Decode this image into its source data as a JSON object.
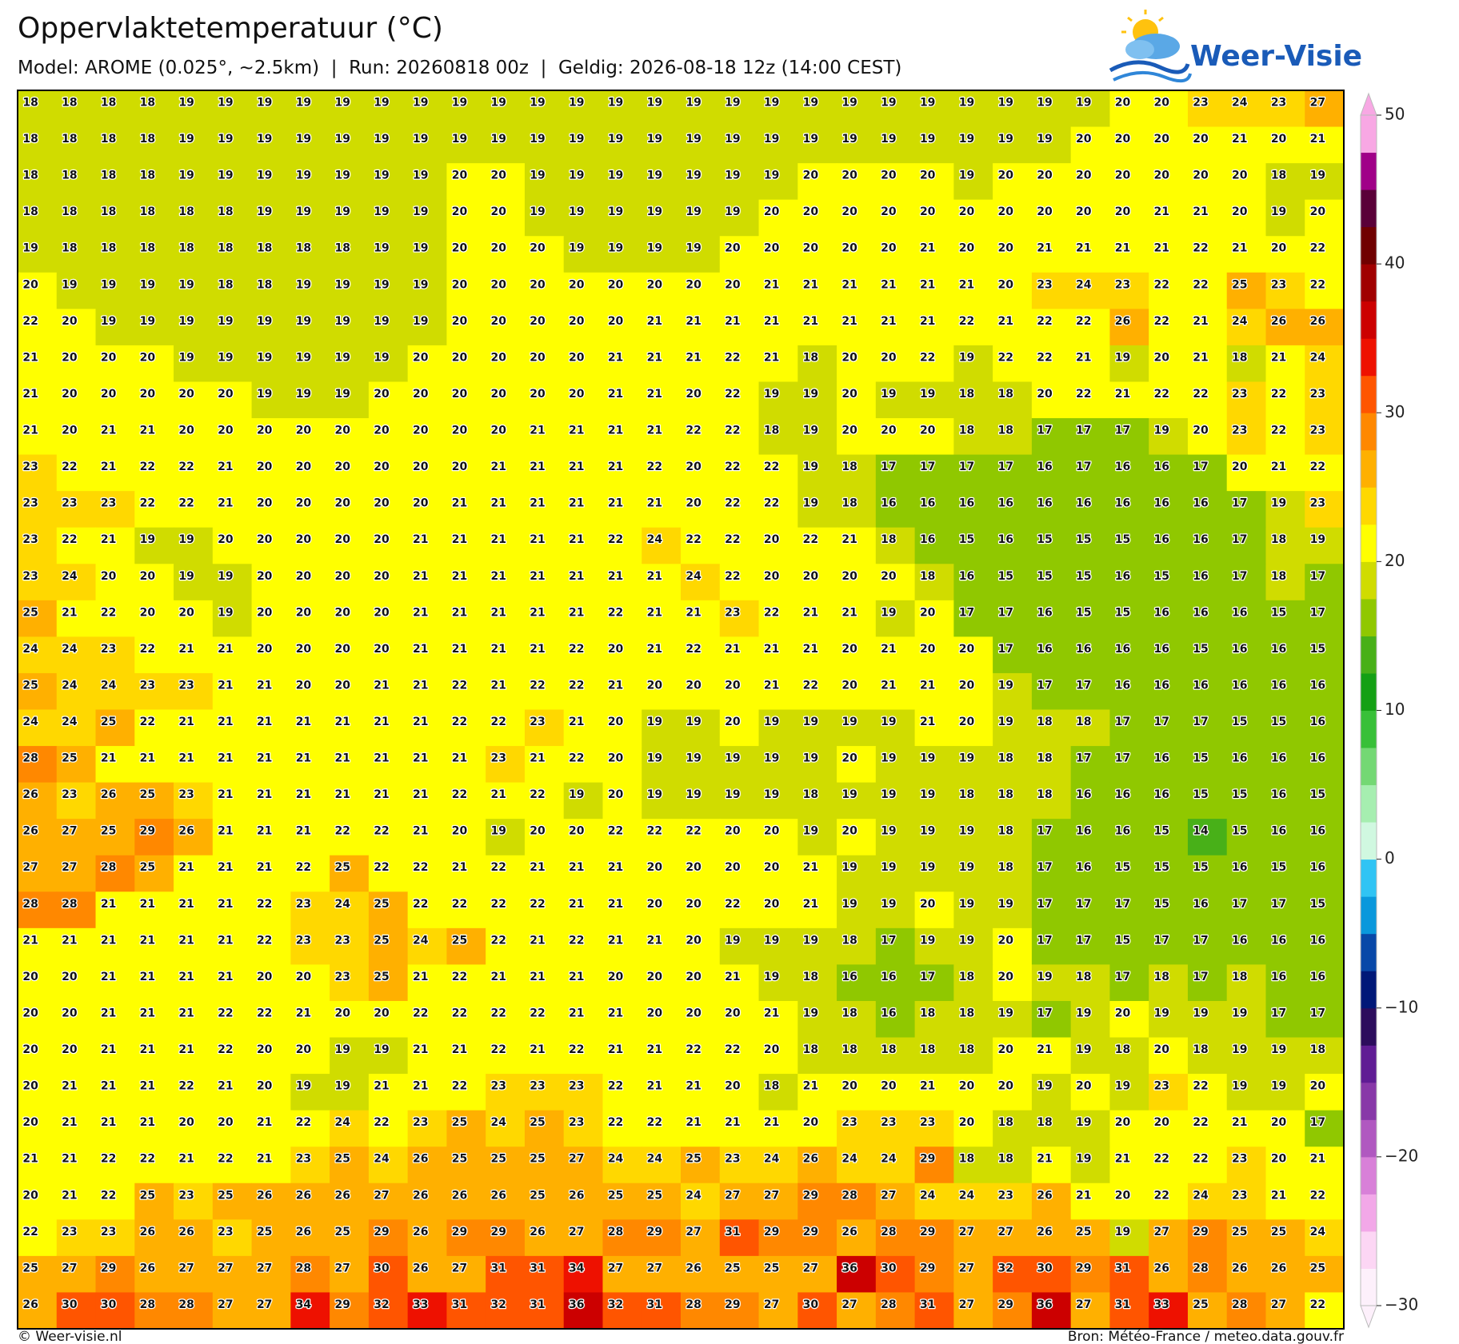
{
  "header": {
    "title": "Oppervlaktetemperatuur (°C)",
    "subtitle": "Model: AROME (0.025°, ~2.5km)  |  Run: 20260818 00z  |  Geldig: 2026-08-18 12z (14:00 CEST)"
  },
  "logo": {
    "text": "Weer-Visie"
  },
  "map": {
    "rows": [
      [
        18,
        18,
        18,
        18,
        19,
        19,
        19,
        19,
        19,
        19,
        19,
        19,
        19,
        19,
        19,
        19,
        19,
        19,
        19,
        19,
        19,
        19,
        19,
        19,
        19,
        19,
        19,
        19,
        20,
        20,
        23,
        24,
        23,
        27
      ],
      [
        18,
        18,
        18,
        18,
        19,
        19,
        19,
        19,
        19,
        19,
        19,
        19,
        19,
        19,
        19,
        19,
        19,
        19,
        19,
        19,
        19,
        19,
        19,
        19,
        19,
        19,
        19,
        20,
        20,
        20,
        20,
        21,
        20,
        21
      ],
      [
        18,
        18,
        18,
        18,
        19,
        19,
        19,
        19,
        19,
        19,
        19,
        20,
        20,
        19,
        19,
        19,
        19,
        19,
        19,
        19,
        20,
        20,
        20,
        20,
        19,
        20,
        20,
        20,
        20,
        20,
        20,
        20,
        18,
        19
      ],
      [
        18,
        18,
        18,
        18,
        18,
        18,
        19,
        19,
        19,
        19,
        19,
        20,
        20,
        19,
        19,
        19,
        19,
        19,
        19,
        20,
        20,
        20,
        20,
        20,
        20,
        20,
        20,
        20,
        20,
        21,
        21,
        20,
        19,
        20
      ],
      [
        19,
        18,
        18,
        18,
        18,
        18,
        18,
        18,
        18,
        19,
        19,
        20,
        20,
        20,
        19,
        19,
        19,
        19,
        20,
        20,
        20,
        20,
        20,
        21,
        20,
        20,
        21,
        21,
        21,
        21,
        22,
        21,
        20,
        22
      ],
      [
        20,
        19,
        19,
        19,
        19,
        18,
        18,
        19,
        19,
        19,
        19,
        20,
        20,
        20,
        20,
        20,
        20,
        20,
        20,
        21,
        21,
        21,
        21,
        21,
        21,
        20,
        23,
        24,
        23,
        22,
        22,
        25,
        23,
        22
      ],
      [
        22,
        20,
        19,
        19,
        19,
        19,
        19,
        19,
        19,
        19,
        19,
        20,
        20,
        20,
        20,
        20,
        21,
        21,
        21,
        21,
        21,
        21,
        21,
        21,
        22,
        21,
        22,
        22,
        26,
        22,
        21,
        24,
        26,
        26
      ],
      [
        21,
        20,
        20,
        20,
        19,
        19,
        19,
        19,
        19,
        19,
        20,
        20,
        20,
        20,
        20,
        21,
        21,
        21,
        22,
        21,
        18,
        20,
        20,
        22,
        19,
        22,
        22,
        21,
        19,
        20,
        21,
        18,
        21,
        24
      ],
      [
        21,
        20,
        20,
        20,
        20,
        20,
        19,
        19,
        19,
        20,
        20,
        20,
        20,
        20,
        20,
        21,
        21,
        20,
        22,
        19,
        19,
        20,
        19,
        19,
        18,
        18,
        20,
        22,
        21,
        22,
        22,
        23,
        22,
        23
      ],
      [
        21,
        20,
        21,
        21,
        20,
        20,
        20,
        20,
        20,
        20,
        20,
        20,
        20,
        21,
        21,
        21,
        21,
        22,
        22,
        18,
        19,
        20,
        20,
        20,
        18,
        18,
        17,
        17,
        17,
        19,
        20,
        23,
        22,
        23
      ],
      [
        23,
        22,
        21,
        22,
        22,
        21,
        20,
        20,
        20,
        20,
        20,
        20,
        21,
        21,
        21,
        21,
        22,
        20,
        22,
        22,
        19,
        18,
        17,
        17,
        17,
        17,
        16,
        17,
        16,
        16,
        17,
        20,
        21,
        22
      ],
      [
        23,
        23,
        23,
        22,
        22,
        21,
        20,
        20,
        20,
        20,
        20,
        21,
        21,
        21,
        21,
        21,
        21,
        20,
        22,
        22,
        19,
        18,
        16,
        16,
        16,
        16,
        16,
        16,
        16,
        16,
        16,
        17,
        19,
        23
      ],
      [
        23,
        22,
        21,
        19,
        19,
        20,
        20,
        20,
        20,
        20,
        21,
        21,
        21,
        21,
        21,
        22,
        24,
        22,
        22,
        20,
        22,
        21,
        18,
        16,
        15,
        16,
        15,
        15,
        15,
        16,
        16,
        17,
        18,
        19
      ],
      [
        23,
        24,
        20,
        20,
        19,
        19,
        20,
        20,
        20,
        20,
        21,
        21,
        21,
        21,
        21,
        21,
        21,
        24,
        22,
        20,
        20,
        20,
        20,
        18,
        16,
        15,
        15,
        15,
        16,
        15,
        16,
        17,
        18,
        17
      ],
      [
        25,
        21,
        22,
        20,
        20,
        19,
        20,
        20,
        20,
        20,
        21,
        21,
        21,
        21,
        21,
        22,
        21,
        21,
        23,
        22,
        21,
        21,
        19,
        20,
        17,
        17,
        16,
        15,
        15,
        16,
        16,
        16,
        15,
        17
      ],
      [
        24,
        24,
        23,
        22,
        21,
        21,
        20,
        20,
        20,
        20,
        21,
        21,
        21,
        21,
        22,
        20,
        21,
        22,
        21,
        21,
        21,
        20,
        21,
        20,
        20,
        17,
        16,
        16,
        16,
        16,
        15,
        16,
        16,
        15
      ],
      [
        25,
        24,
        24,
        23,
        23,
        21,
        21,
        20,
        20,
        21,
        21,
        22,
        21,
        22,
        22,
        21,
        20,
        20,
        20,
        21,
        22,
        20,
        21,
        21,
        20,
        19,
        17,
        17,
        16,
        16,
        16,
        16,
        16,
        16
      ],
      [
        24,
        24,
        25,
        22,
        21,
        21,
        21,
        21,
        21,
        21,
        21,
        22,
        22,
        23,
        21,
        20,
        19,
        19,
        20,
        19,
        19,
        19,
        19,
        21,
        20,
        19,
        18,
        18,
        17,
        17,
        17,
        15,
        15,
        16
      ],
      [
        28,
        25,
        21,
        21,
        21,
        21,
        21,
        21,
        21,
        21,
        21,
        21,
        23,
        21,
        22,
        20,
        19,
        19,
        19,
        19,
        19,
        20,
        19,
        19,
        19,
        18,
        18,
        17,
        17,
        16,
        15,
        16,
        16,
        16
      ],
      [
        26,
        23,
        26,
        25,
        23,
        21,
        21,
        21,
        21,
        21,
        21,
        22,
        21,
        22,
        19,
        20,
        19,
        19,
        19,
        19,
        18,
        19,
        19,
        19,
        18,
        18,
        18,
        16,
        16,
        16,
        15,
        15,
        16,
        15
      ],
      [
        26,
        27,
        25,
        29,
        26,
        21,
        21,
        21,
        22,
        22,
        21,
        20,
        19,
        20,
        20,
        22,
        22,
        22,
        20,
        20,
        19,
        20,
        19,
        19,
        19,
        18,
        17,
        16,
        16,
        15,
        14,
        15,
        16,
        16
      ],
      [
        27,
        27,
        28,
        25,
        21,
        21,
        21,
        22,
        25,
        22,
        22,
        21,
        22,
        21,
        21,
        21,
        20,
        20,
        20,
        20,
        21,
        19,
        19,
        19,
        19,
        18,
        17,
        16,
        15,
        15,
        15,
        16,
        15,
        16
      ],
      [
        28,
        28,
        21,
        21,
        21,
        21,
        22,
        23,
        24,
        25,
        22,
        22,
        22,
        22,
        21,
        21,
        20,
        20,
        22,
        20,
        21,
        19,
        19,
        20,
        19,
        19,
        17,
        17,
        17,
        15,
        16,
        17,
        17,
        15
      ],
      [
        21,
        21,
        21,
        21,
        21,
        21,
        22,
        23,
        23,
        25,
        24,
        25,
        22,
        21,
        22,
        21,
        21,
        20,
        19,
        19,
        19,
        18,
        17,
        19,
        19,
        20,
        17,
        17,
        15,
        17,
        17,
        16,
        16,
        16
      ],
      [
        20,
        20,
        21,
        21,
        21,
        21,
        20,
        20,
        23,
        25,
        21,
        22,
        21,
        21,
        21,
        20,
        20,
        20,
        21,
        19,
        18,
        16,
        16,
        17,
        18,
        20,
        19,
        18,
        17,
        18,
        17,
        18,
        16,
        16
      ],
      [
        20,
        20,
        21,
        21,
        21,
        22,
        22,
        21,
        20,
        20,
        22,
        22,
        22,
        22,
        21,
        21,
        20,
        20,
        20,
        21,
        19,
        18,
        16,
        18,
        18,
        19,
        17,
        19,
        20,
        19,
        19,
        19,
        17,
        17
      ],
      [
        20,
        20,
        21,
        21,
        21,
        22,
        20,
        20,
        19,
        19,
        21,
        21,
        22,
        21,
        22,
        21,
        21,
        22,
        22,
        20,
        18,
        18,
        18,
        18,
        18,
        20,
        21,
        19,
        18,
        20,
        18,
        19,
        19,
        18
      ],
      [
        20,
        21,
        21,
        21,
        22,
        21,
        20,
        19,
        19,
        21,
        21,
        22,
        23,
        23,
        23,
        22,
        21,
        21,
        20,
        18,
        21,
        20,
        20,
        21,
        20,
        20,
        19,
        20,
        19,
        23,
        22,
        19,
        19,
        20
      ],
      [
        20,
        21,
        21,
        21,
        20,
        20,
        21,
        22,
        24,
        22,
        23,
        25,
        24,
        25,
        23,
        22,
        22,
        21,
        21,
        21,
        20,
        23,
        23,
        23,
        20,
        18,
        18,
        19,
        20,
        20,
        22,
        21,
        20,
        17
      ],
      [
        21,
        21,
        22,
        22,
        21,
        22,
        21,
        23,
        25,
        24,
        26,
        25,
        25,
        25,
        27,
        24,
        24,
        25,
        23,
        24,
        26,
        24,
        24,
        29,
        18,
        18,
        21,
        19,
        21,
        22,
        22,
        23,
        20,
        21
      ],
      [
        20,
        21,
        22,
        25,
        23,
        25,
        26,
        26,
        26,
        27,
        26,
        26,
        26,
        25,
        26,
        25,
        25,
        24,
        27,
        27,
        29,
        28,
        27,
        24,
        24,
        23,
        26,
        21,
        20,
        22,
        24,
        23,
        21,
        22
      ],
      [
        22,
        23,
        23,
        26,
        26,
        23,
        25,
        26,
        25,
        29,
        26,
        29,
        29,
        26,
        27,
        28,
        29,
        27,
        31,
        29,
        29,
        26,
        28,
        29,
        27,
        27,
        26,
        25,
        19,
        27,
        29,
        25,
        25,
        24
      ],
      [
        25,
        27,
        29,
        26,
        27,
        27,
        27,
        28,
        27,
        30,
        26,
        27,
        31,
        31,
        34,
        27,
        27,
        26,
        25,
        25,
        27,
        36,
        30,
        29,
        27,
        32,
        30,
        29,
        31,
        26,
        28,
        26,
        26,
        25
      ],
      [
        26,
        30,
        30,
        28,
        28,
        27,
        27,
        34,
        29,
        32,
        33,
        31,
        32,
        31,
        36,
        32,
        31,
        28,
        29,
        27,
        30,
        27,
        28,
        31,
        27,
        29,
        36,
        27,
        31,
        33,
        25,
        28,
        27,
        22
      ]
    ]
  },
  "colorbar": {
    "lim": [
      -30,
      50
    ],
    "ticks": [
      {
        "value": -30,
        "label": "−30"
      },
      {
        "value": -20,
        "label": "−20"
      },
      {
        "value": -10,
        "label": "−10"
      },
      0,
      10,
      20,
      30,
      40,
      50
    ],
    "colors": [
      "#fdf0fb",
      "#fcd6f4",
      "#f2a8e8",
      "#d880d8",
      "#b058c0",
      "#8838a8",
      "#601c94",
      "#2c0c5c",
      "#001878",
      "#0848a8",
      "#0a98dc",
      "#30c4f4",
      "#d0f8e0",
      "#a6eeb0",
      "#74d874",
      "#38c038",
      "#14a014",
      "#48b018",
      "#90c800",
      "#d0dc00",
      "#ffff00",
      "#ffd800",
      "#ffb000",
      "#ff8800",
      "#ff5500",
      "#ee1100",
      "#cc0000",
      "#a00000",
      "#700000",
      "#5a0038",
      "#a00088",
      "#f8a8e4"
    ]
  },
  "footer": {
    "left": "© Weer-visie.nl",
    "right": "Bron: Météo-France / meteo.data.gouv.fr"
  }
}
